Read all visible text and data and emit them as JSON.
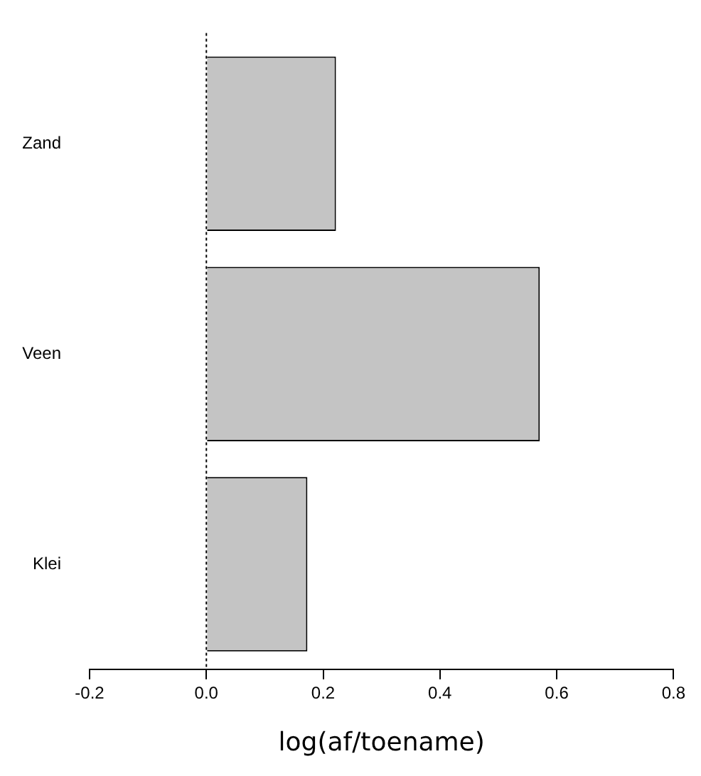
{
  "chart_data": {
    "type": "bar",
    "orientation": "horizontal",
    "categories": [
      "Zand",
      "Veen",
      "Klei"
    ],
    "values": [
      0.222,
      0.571,
      0.173
    ],
    "color": "#c4c4c4",
    "xlabel": "log(af/toename)",
    "xlim": [
      -0.2,
      0.8
    ],
    "xticks": [
      -0.2,
      {
        "value": 0,
        "label": "0.0"
      },
      0.2,
      0.4,
      0.6,
      0.8
    ],
    "ref_lines": [
      {
        "axis": "x",
        "value": 0,
        "line_style": "dotted",
        "color": "#000000"
      }
    ],
    "grid": false,
    "legend": false
  }
}
